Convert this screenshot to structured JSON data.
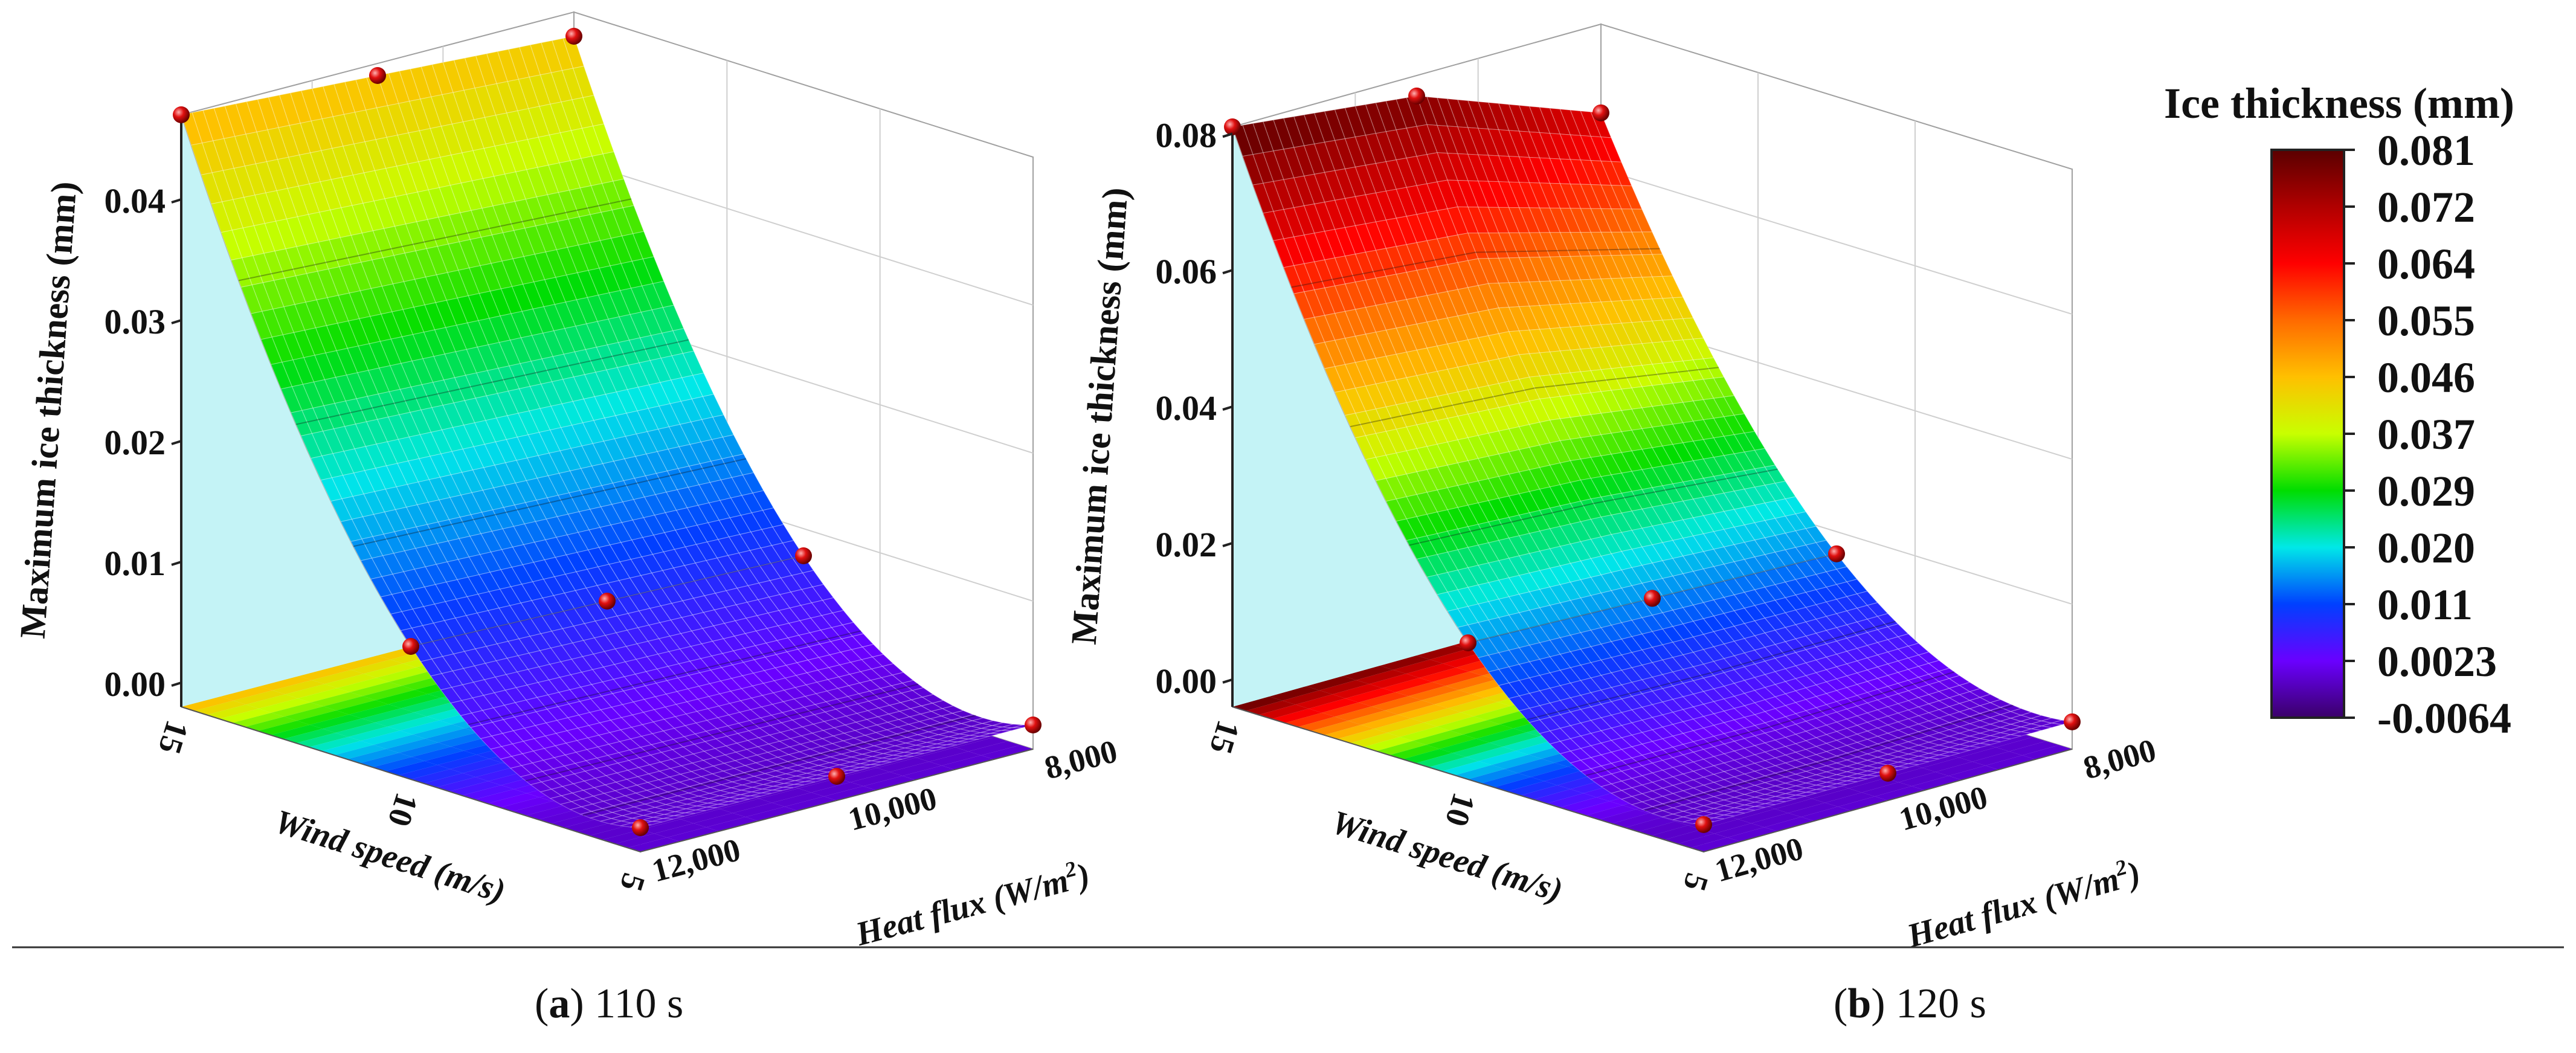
{
  "panels": [
    {
      "letter": "a",
      "caption": "110 s",
      "z_label": "Maximum ice thickness (mm)",
      "x_label": "Wind speed (m/s)",
      "y_label_prefix": "Heat flux (W/m",
      "y_label_sup": "2",
      "y_label_suffix": ")",
      "z_ticks": [
        "0.00",
        "0.01",
        "0.02",
        "0.03",
        "0.04"
      ],
      "x_ticks": [
        "15",
        "10",
        "5"
      ],
      "y_ticks": [
        "8,000",
        "10,000",
        "12,000"
      ]
    },
    {
      "letter": "b",
      "caption": "120 s",
      "z_label": "Maximum ice thickness (mm)",
      "x_label": "Wind speed (m/s)",
      "y_label_prefix": "Heat flux (W/m",
      "y_label_sup": "2",
      "y_label_suffix": ")",
      "z_ticks": [
        "0.00",
        "0.02",
        "0.04",
        "0.06",
        "0.08"
      ],
      "x_ticks": [
        "15",
        "10",
        "5"
      ],
      "y_ticks": [
        "8,000",
        "10,000",
        "12,000"
      ]
    }
  ],
  "colorbar": {
    "title": "Ice thickness (mm)",
    "ticks": [
      "0.081",
      "0.072",
      "0.064",
      "0.055",
      "0.046",
      "0.037",
      "0.029",
      "0.020",
      "0.011",
      "0.0023",
      "-0.0064"
    ],
    "colors": [
      "#5a0000",
      "#b00000",
      "#ff0000",
      "#ff6a00",
      "#ffc000",
      "#c8ff00",
      "#00dd00",
      "#00e8e8",
      "#0040ff",
      "#6a00ff",
      "#3a0068"
    ]
  },
  "chart_data": [
    {
      "type": "surface3d",
      "title": "(a) 110 s",
      "xlabel": "Wind speed (m/s)",
      "ylabel": "Heat flux (W/m2)",
      "zlabel": "Maximum ice thickness (mm)",
      "x_range": [
        5,
        15
      ],
      "y_range": [
        8000,
        12000
      ],
      "zlim": [
        -0.002,
        0.047
      ],
      "points": [
        {
          "wind": 15,
          "heat": 12000,
          "ice": 0.047
        },
        {
          "wind": 15,
          "heat": 10000,
          "ice": 0.046
        },
        {
          "wind": 15,
          "heat": 8000,
          "ice": 0.045
        },
        {
          "wind": 10,
          "heat": 12000,
          "ice": 0.009
        },
        {
          "wind": 10,
          "heat": 10000,
          "ice": 0.0085
        },
        {
          "wind": 10,
          "heat": 8000,
          "ice": 0.008
        },
        {
          "wind": 5,
          "heat": 12000,
          "ice": 0.0
        },
        {
          "wind": 5,
          "heat": 10000,
          "ice": 0.0
        },
        {
          "wind": 5,
          "heat": 8000,
          "ice": 0.0
        }
      ]
    },
    {
      "type": "surface3d",
      "title": "(b) 120 s",
      "xlabel": "Wind speed (m/s)",
      "ylabel": "Heat flux (W/m2)",
      "zlabel": "Maximum ice thickness (mm)",
      "x_range": [
        5,
        15
      ],
      "y_range": [
        8000,
        12000
      ],
      "zlim": [
        -0.004,
        0.081
      ],
      "points": [
        {
          "wind": 15,
          "heat": 12000,
          "ice": 0.081
        },
        {
          "wind": 15,
          "heat": 10000,
          "ice": 0.078
        },
        {
          "wind": 15,
          "heat": 8000,
          "ice": 0.068
        },
        {
          "wind": 10,
          "heat": 12000,
          "ice": 0.016
        },
        {
          "wind": 10,
          "heat": 10000,
          "ice": 0.015
        },
        {
          "wind": 10,
          "heat": 8000,
          "ice": 0.014
        },
        {
          "wind": 5,
          "heat": 12000,
          "ice": 0.0
        },
        {
          "wind": 5,
          "heat": 10000,
          "ice": 0.0
        },
        {
          "wind": 5,
          "heat": 8000,
          "ice": 0.0
        }
      ]
    }
  ]
}
